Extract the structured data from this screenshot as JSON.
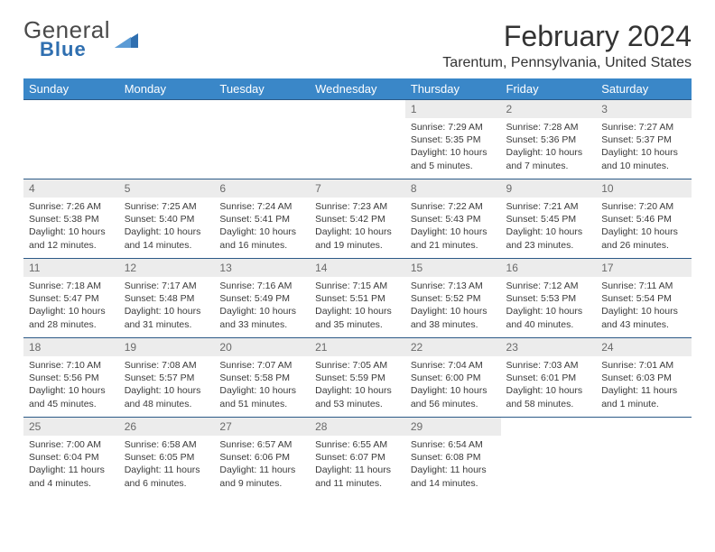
{
  "branding": {
    "word1": "General",
    "word2": "Blue",
    "triangle_color": "#2f6fb0",
    "text1_color": "#4a4a4a",
    "text2_color": "#2f6fb0"
  },
  "title": {
    "month": "February 2024",
    "location": "Tarentum, Pennsylvania, United States"
  },
  "colors": {
    "header_bg": "#3a87c8",
    "header_text": "#ffffff",
    "row_divider": "#2c5a87",
    "daynum_bg": "#ececec",
    "daynum_text": "#6a6a6a",
    "body_text": "#3a3a3a",
    "page_bg": "#ffffff"
  },
  "weekdays": [
    "Sunday",
    "Monday",
    "Tuesday",
    "Wednesday",
    "Thursday",
    "Friday",
    "Saturday"
  ],
  "weeks": [
    [
      {
        "empty": true
      },
      {
        "empty": true
      },
      {
        "empty": true
      },
      {
        "empty": true
      },
      {
        "day": "1",
        "sunrise": "Sunrise: 7:29 AM",
        "sunset": "Sunset: 5:35 PM",
        "daylight": "Daylight: 10 hours and 5 minutes."
      },
      {
        "day": "2",
        "sunrise": "Sunrise: 7:28 AM",
        "sunset": "Sunset: 5:36 PM",
        "daylight": "Daylight: 10 hours and 7 minutes."
      },
      {
        "day": "3",
        "sunrise": "Sunrise: 7:27 AM",
        "sunset": "Sunset: 5:37 PM",
        "daylight": "Daylight: 10 hours and 10 minutes."
      }
    ],
    [
      {
        "day": "4",
        "sunrise": "Sunrise: 7:26 AM",
        "sunset": "Sunset: 5:38 PM",
        "daylight": "Daylight: 10 hours and 12 minutes."
      },
      {
        "day": "5",
        "sunrise": "Sunrise: 7:25 AM",
        "sunset": "Sunset: 5:40 PM",
        "daylight": "Daylight: 10 hours and 14 minutes."
      },
      {
        "day": "6",
        "sunrise": "Sunrise: 7:24 AM",
        "sunset": "Sunset: 5:41 PM",
        "daylight": "Daylight: 10 hours and 16 minutes."
      },
      {
        "day": "7",
        "sunrise": "Sunrise: 7:23 AM",
        "sunset": "Sunset: 5:42 PM",
        "daylight": "Daylight: 10 hours and 19 minutes."
      },
      {
        "day": "8",
        "sunrise": "Sunrise: 7:22 AM",
        "sunset": "Sunset: 5:43 PM",
        "daylight": "Daylight: 10 hours and 21 minutes."
      },
      {
        "day": "9",
        "sunrise": "Sunrise: 7:21 AM",
        "sunset": "Sunset: 5:45 PM",
        "daylight": "Daylight: 10 hours and 23 minutes."
      },
      {
        "day": "10",
        "sunrise": "Sunrise: 7:20 AM",
        "sunset": "Sunset: 5:46 PM",
        "daylight": "Daylight: 10 hours and 26 minutes."
      }
    ],
    [
      {
        "day": "11",
        "sunrise": "Sunrise: 7:18 AM",
        "sunset": "Sunset: 5:47 PM",
        "daylight": "Daylight: 10 hours and 28 minutes."
      },
      {
        "day": "12",
        "sunrise": "Sunrise: 7:17 AM",
        "sunset": "Sunset: 5:48 PM",
        "daylight": "Daylight: 10 hours and 31 minutes."
      },
      {
        "day": "13",
        "sunrise": "Sunrise: 7:16 AM",
        "sunset": "Sunset: 5:49 PM",
        "daylight": "Daylight: 10 hours and 33 minutes."
      },
      {
        "day": "14",
        "sunrise": "Sunrise: 7:15 AM",
        "sunset": "Sunset: 5:51 PM",
        "daylight": "Daylight: 10 hours and 35 minutes."
      },
      {
        "day": "15",
        "sunrise": "Sunrise: 7:13 AM",
        "sunset": "Sunset: 5:52 PM",
        "daylight": "Daylight: 10 hours and 38 minutes."
      },
      {
        "day": "16",
        "sunrise": "Sunrise: 7:12 AM",
        "sunset": "Sunset: 5:53 PM",
        "daylight": "Daylight: 10 hours and 40 minutes."
      },
      {
        "day": "17",
        "sunrise": "Sunrise: 7:11 AM",
        "sunset": "Sunset: 5:54 PM",
        "daylight": "Daylight: 10 hours and 43 minutes."
      }
    ],
    [
      {
        "day": "18",
        "sunrise": "Sunrise: 7:10 AM",
        "sunset": "Sunset: 5:56 PM",
        "daylight": "Daylight: 10 hours and 45 minutes."
      },
      {
        "day": "19",
        "sunrise": "Sunrise: 7:08 AM",
        "sunset": "Sunset: 5:57 PM",
        "daylight": "Daylight: 10 hours and 48 minutes."
      },
      {
        "day": "20",
        "sunrise": "Sunrise: 7:07 AM",
        "sunset": "Sunset: 5:58 PM",
        "daylight": "Daylight: 10 hours and 51 minutes."
      },
      {
        "day": "21",
        "sunrise": "Sunrise: 7:05 AM",
        "sunset": "Sunset: 5:59 PM",
        "daylight": "Daylight: 10 hours and 53 minutes."
      },
      {
        "day": "22",
        "sunrise": "Sunrise: 7:04 AM",
        "sunset": "Sunset: 6:00 PM",
        "daylight": "Daylight: 10 hours and 56 minutes."
      },
      {
        "day": "23",
        "sunrise": "Sunrise: 7:03 AM",
        "sunset": "Sunset: 6:01 PM",
        "daylight": "Daylight: 10 hours and 58 minutes."
      },
      {
        "day": "24",
        "sunrise": "Sunrise: 7:01 AM",
        "sunset": "Sunset: 6:03 PM",
        "daylight": "Daylight: 11 hours and 1 minute."
      }
    ],
    [
      {
        "day": "25",
        "sunrise": "Sunrise: 7:00 AM",
        "sunset": "Sunset: 6:04 PM",
        "daylight": "Daylight: 11 hours and 4 minutes."
      },
      {
        "day": "26",
        "sunrise": "Sunrise: 6:58 AM",
        "sunset": "Sunset: 6:05 PM",
        "daylight": "Daylight: 11 hours and 6 minutes."
      },
      {
        "day": "27",
        "sunrise": "Sunrise: 6:57 AM",
        "sunset": "Sunset: 6:06 PM",
        "daylight": "Daylight: 11 hours and 9 minutes."
      },
      {
        "day": "28",
        "sunrise": "Sunrise: 6:55 AM",
        "sunset": "Sunset: 6:07 PM",
        "daylight": "Daylight: 11 hours and 11 minutes."
      },
      {
        "day": "29",
        "sunrise": "Sunrise: 6:54 AM",
        "sunset": "Sunset: 6:08 PM",
        "daylight": "Daylight: 11 hours and 14 minutes."
      },
      {
        "empty": true
      },
      {
        "empty": true
      }
    ]
  ]
}
